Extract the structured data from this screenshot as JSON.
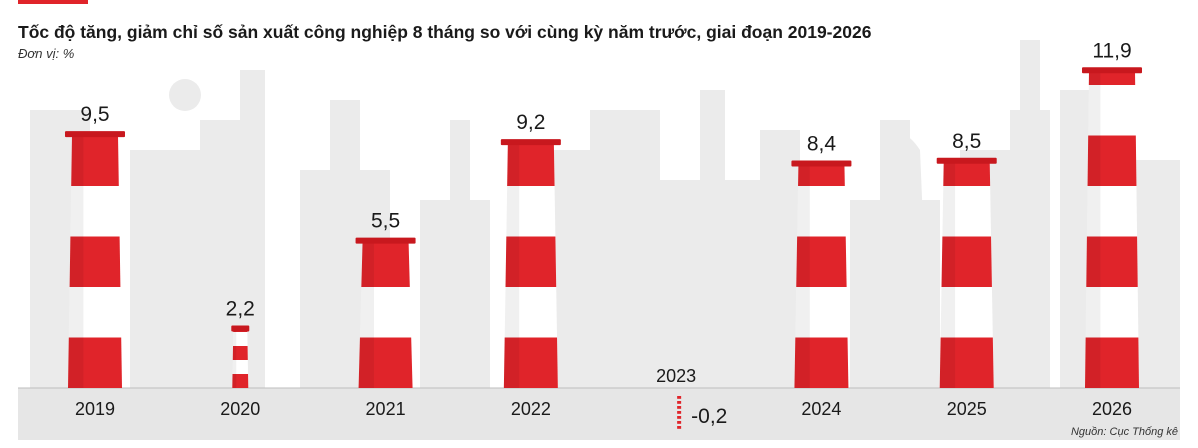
{
  "title": "Tốc độ tăng, giảm chỉ số sản xuất công nghiệp 8 tháng so với cùng kỳ năm trước, giai đoạn 2019-2026",
  "unit": "Đơn vị: %",
  "source": "Nguồn: Cục Thống kê",
  "colors": {
    "accent": "#e0242a",
    "stripe_red": "#e0242a",
    "stripe_white": "#ffffff",
    "background_buildings": "#ebebeb",
    "ground": "#e6e6e6"
  },
  "chart_data": {
    "type": "bar",
    "style": "smokestack",
    "categories": [
      "2019",
      "2020",
      "2021",
      "2022",
      "2023",
      "2024",
      "2025",
      "2026"
    ],
    "values": [
      9.5,
      2.2,
      5.5,
      9.2,
      -0.2,
      8.4,
      8.5,
      11.9
    ],
    "labels": [
      "9,5",
      "2,2",
      "5,5",
      "9,2",
      "-0,2",
      "8,4",
      "8,5",
      "11,9"
    ],
    "title": "Tốc độ tăng, giảm chỉ số sản xuất công nghiệp 8 tháng so với cùng kỳ năm trước, giai đoạn 2019-2026",
    "ylabel": "Đơn vị: %",
    "xlabel": "",
    "ylim": [
      0,
      12.4
    ],
    "grid": false,
    "legend": "none"
  }
}
